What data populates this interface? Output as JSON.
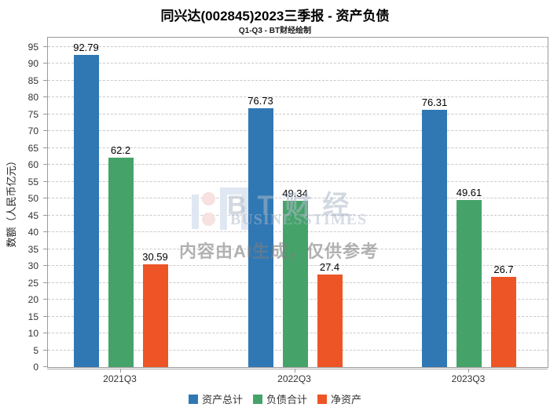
{
  "title": "同兴达(002845)2023三季报 - 资产负债",
  "subtitle": "Q1-Q3 - BT财经绘制",
  "watermark": {
    "brand": "BT财经",
    "brand_sub": "BUSINESSTIMES",
    "notice": "内容由AI生成，仅供参考"
  },
  "chart_data": {
    "type": "bar",
    "title": "同兴达(002845)2023三季报 - 资产负债",
    "subtitle": "Q1-Q3 - BT财经绘制",
    "categories": [
      "2021Q3",
      "2022Q3",
      "2023Q3"
    ],
    "series": [
      {
        "name": "资产总计",
        "color": "#3078B4",
        "values": [
          92.79,
          76.73,
          76.31
        ]
      },
      {
        "name": "负债合计",
        "color": "#45A36A",
        "values": [
          62.2,
          49.34,
          49.61
        ]
      },
      {
        "name": "净资产",
        "color": "#EE5526",
        "values": [
          30.59,
          27.4,
          26.7
        ]
      }
    ],
    "xlabel": "",
    "ylabel": "数额（人民币亿元）",
    "ylim": [
      0,
      97.8
    ],
    "yticks": [
      0,
      5,
      10,
      15,
      20,
      25,
      30,
      35,
      40,
      45,
      50,
      55,
      60,
      65,
      70,
      75,
      80,
      85,
      90,
      95
    ],
    "grid": "horizontal-dashed",
    "legend_position": "bottom"
  }
}
